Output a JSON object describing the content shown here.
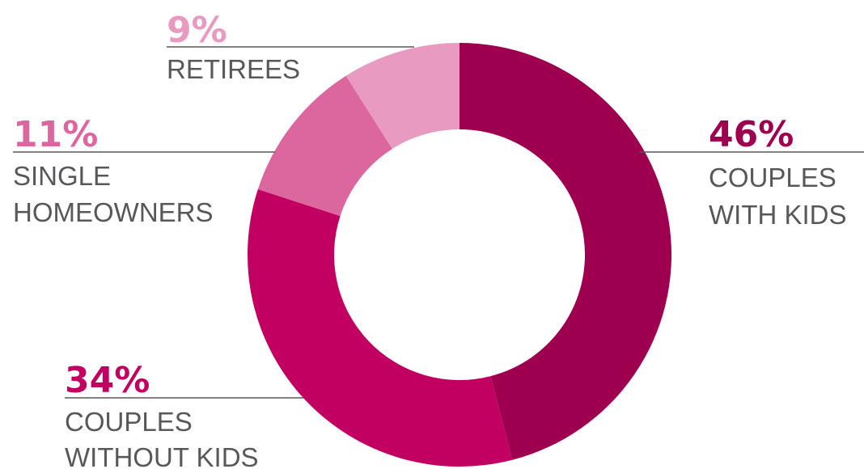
{
  "chart_data": {
    "type": "pie",
    "donut": true,
    "segments": [
      {
        "label": "COUPLES WITH KIDS",
        "label_lines": [
          "COUPLES",
          "WITH KIDS"
        ],
        "value": 46,
        "value_text": "46%",
        "color": "#9e004f"
      },
      {
        "label": "COUPLES WITHOUT KIDS",
        "label_lines": [
          "COUPLES",
          "WITHOUT KIDS"
        ],
        "value": 34,
        "value_text": "34%",
        "color": "#c20062"
      },
      {
        "label": "SINGLE HOMEOWNERS",
        "label_lines": [
          "SINGLE",
          "HOMEOWNERS"
        ],
        "value": 11,
        "value_text": "11%",
        "color": "#dc679f"
      },
      {
        "label": "RETIREES",
        "label_lines": [
          "RETIREES"
        ],
        "value": 9,
        "value_text": "9%",
        "color": "#e89ac1"
      }
    ],
    "start_angle": "12 o'clock",
    "direction": "clockwise",
    "legend": "none",
    "label_text_color": "#58585a"
  }
}
